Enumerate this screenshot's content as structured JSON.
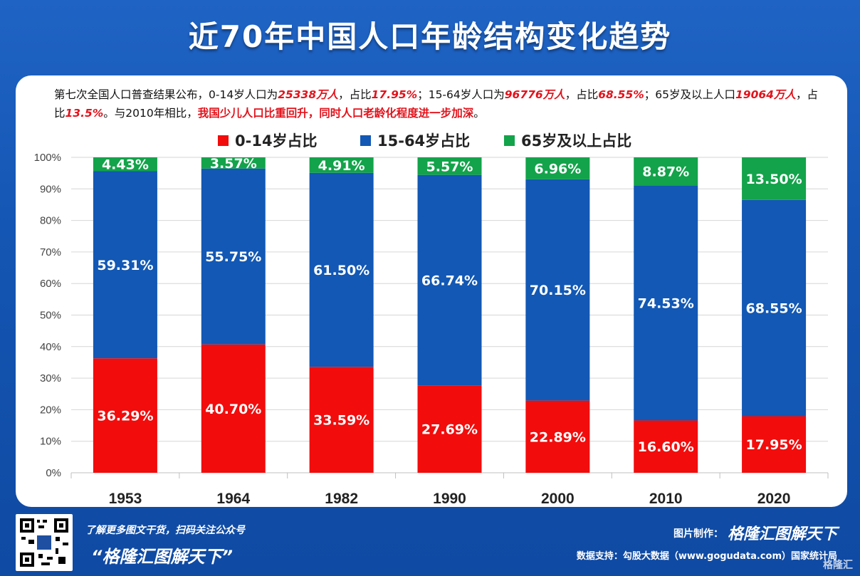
{
  "title": "近70年中国人口年龄结构变化趋势",
  "intro": {
    "p1": "第七次全国人口普查结果公布，0-14岁人口为",
    "v1": "25338万人",
    "p2": "，占比",
    "v2": "17.95%",
    "p3": "；15-64岁人口为",
    "v3": "96776万人",
    "p4": "，占比",
    "v4": "68.55%",
    "p5": "；65岁及以上人口",
    "v5": "19064万人",
    "p6": "，占比",
    "v6": "13.5%",
    "p7": "。与2010年相比，",
    "v7": "我国少儿人口比重回升，同时人口老龄化程度进一步加深",
    "p8": "。"
  },
  "colors": {
    "young": "#f20c0c",
    "working": "#1258b4",
    "old": "#13a34a"
  },
  "chart_data": {
    "type": "bar",
    "stacked": true,
    "categories": [
      "1953",
      "1964",
      "1982",
      "1990",
      "2000",
      "2010",
      "2020"
    ],
    "series": [
      {
        "name": "0-14岁占比",
        "values": [
          36.29,
          40.7,
          33.59,
          27.69,
          22.89,
          16.6,
          17.95
        ],
        "labels": [
          "36.29%",
          "40.70%",
          "33.59%",
          "27.69%",
          "22.89%",
          "16.60%",
          "17.95%"
        ]
      },
      {
        "name": "15-64岁占比",
        "values": [
          59.31,
          55.75,
          61.5,
          66.74,
          70.15,
          74.53,
          68.55
        ],
        "labels": [
          "59.31%",
          "55.75%",
          "61.50%",
          "66.74%",
          "70.15%",
          "74.53%",
          "68.55%"
        ]
      },
      {
        "name": "65岁及以上占比",
        "values": [
          4.43,
          3.57,
          4.91,
          5.57,
          6.96,
          8.87,
          13.5
        ],
        "labels": [
          "4.43%",
          "3.57%",
          "4.91%",
          "5.57%",
          "6.96%",
          "8.87%",
          "13.50%"
        ]
      }
    ],
    "ylim": [
      0,
      100
    ],
    "yticks": [
      "0%",
      "10%",
      "20%",
      "30%",
      "40%",
      "50%",
      "60%",
      "70%",
      "80%",
      "90%",
      "100%"
    ],
    "grid": true,
    "legend": "top"
  },
  "footer": {
    "hint": "了解更多图文干货，扫码关注公众号",
    "slogan": "“格隆汇图解天下”",
    "credit_label": "图片制作：",
    "credit_brand": "格隆汇图解天下",
    "source": "数据支持：勾股大数据（www.gogudata.com）国家统计局",
    "watermark": "格隆汇"
  }
}
